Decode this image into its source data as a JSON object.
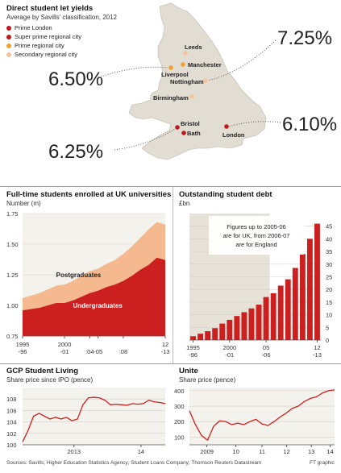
{
  "map": {
    "title": "Direct student let yields",
    "subtitle": "Average by Savills' classification, 2012",
    "legend": [
      {
        "label": "Prime London",
        "color": "#c0161c"
      },
      {
        "label": "Super prime regional city",
        "color": "#c0161c"
      },
      {
        "label": "Prime regional city",
        "color": "#f0a030"
      },
      {
        "label": "Secondary regional city",
        "color": "#f5c39b"
      }
    ],
    "cities": [
      {
        "name": "Leeds",
        "tier": "Secondary regional city"
      },
      {
        "name": "Manchester",
        "tier": "Prime regional city"
      },
      {
        "name": "Liverpool",
        "tier": "Prime regional city"
      },
      {
        "name": "Nottingham",
        "tier": "Secondary regional city"
      },
      {
        "name": "Birmingham",
        "tier": "Secondary regional city"
      },
      {
        "name": "Bristol",
        "tier": "Super prime regional city"
      },
      {
        "name": "Bath",
        "tier": "Super prime regional city"
      },
      {
        "name": "London",
        "tier": "Prime London"
      }
    ],
    "yields": [
      "6.50%",
      "7.25%",
      "6.10%",
      "6.25%"
    ]
  },
  "chart_data": [
    {
      "type": "area",
      "title": "Full-time students enrolled at UK universities",
      "subtitle": "Number (m)",
      "x": [
        "1995-96",
        "1996-97",
        "1997-98",
        "1998-99",
        "1999-00",
        "2000-01",
        "2001-02",
        "2002-03",
        "2003-04",
        "2004-05",
        "2005-06",
        "2006-07",
        "2007-08",
        "2008-09",
        "2009-10",
        "2010-11",
        "2011-12",
        "2012-13"
      ],
      "x_tick_labels": [
        [
          "1995",
          "-96"
        ],
        [
          "2000",
          "-01"
        ],
        [
          "",
          ":04"
        ],
        [
          "",
          "-05"
        ],
        [
          "",
          ":08"
        ],
        [
          "12",
          "-13"
        ]
      ],
      "ylim": [
        0.75,
        1.75
      ],
      "y_ticks": [
        "1.75",
        "1.50",
        "1.25",
        "1.00",
        "0.75"
      ],
      "series": [
        {
          "name": "Undergraduates",
          "values": [
            0.96,
            0.97,
            0.98,
            1.0,
            1.02,
            1.02,
            1.04,
            1.07,
            1.1,
            1.12,
            1.15,
            1.17,
            1.2,
            1.24,
            1.29,
            1.33,
            1.39,
            1.37
          ]
        },
        {
          "name": "Postgraduates",
          "values": [
            1.06,
            1.08,
            1.1,
            1.13,
            1.16,
            1.17,
            1.2,
            1.24,
            1.28,
            1.3,
            1.34,
            1.37,
            1.42,
            1.48,
            1.55,
            1.62,
            1.68,
            1.66
          ]
        }
      ],
      "colors": {
        "Undergraduates": "#cc1f1f",
        "Postgraduates": "#f5b98f"
      }
    },
    {
      "type": "bar",
      "title": "Outstanding student debt",
      "subtitle": "£bn",
      "categories": [
        "1995-96",
        "1996-97",
        "1997-98",
        "1998-99",
        "1999-00",
        "2000-01",
        "2001-02",
        "2002-03",
        "2003-04",
        "2004-05",
        "2005-06",
        "2006-07",
        "2007-08",
        "2008-09",
        "2009-10",
        "2010-11",
        "2011-12",
        "2012-13"
      ],
      "values": [
        1.5,
        2.5,
        3.5,
        4.7,
        6.5,
        8,
        9.5,
        11,
        12.5,
        14,
        17,
        18.5,
        21.5,
        24,
        28.5,
        34,
        40,
        46
      ],
      "ylim": [
        0,
        50
      ],
      "y_ticks": [
        "0",
        "5",
        "10",
        "15",
        "20",
        "25",
        "30",
        "35",
        "40",
        "45"
      ],
      "x_tick_labels": [
        [
          "1995",
          "-96"
        ],
        [
          "2000",
          "-01"
        ],
        [
          "05",
          "-06"
        ],
        [
          "12",
          "-13"
        ]
      ],
      "shaded_range": [
        "1995-96",
        "2005-06"
      ],
      "annotation": [
        "Figures up to 2005-06",
        "are for UK, from 2006-07",
        "are for England"
      ],
      "color": "#cc1f1f"
    },
    {
      "type": "line",
      "title": "GCP Student Living",
      "subtitle": "Share price since IPO (pence)",
      "ylim": [
        100,
        110
      ],
      "y_ticks": [
        "100",
        "102",
        "104",
        "106",
        "108"
      ],
      "x_tick_labels": [
        "2013",
        "14"
      ],
      "x": [
        "2012-05",
        "2012-05",
        "2012-06",
        "2012-06",
        "2012-07",
        "2012-08",
        "2012-09",
        "2012-10",
        "2012-11",
        "2012-12",
        "2013-01",
        "2013-02",
        "2013-03",
        "2013-04",
        "2013-05",
        "2013-06",
        "2013-07",
        "2013-08",
        "2013-09",
        "2013-10",
        "2013-11",
        "2013-12",
        "2014-01",
        "2014-02",
        "2014-03",
        "2014-04",
        "2014-05"
      ],
      "values": [
        100.5,
        102.5,
        105,
        105.5,
        105,
        104.5,
        104.8,
        104.5,
        104.8,
        104.2,
        104.5,
        107,
        108.2,
        108.3,
        108.2,
        107.8,
        107,
        107.1,
        107,
        106.9,
        107.2,
        107.1,
        107.2,
        107.8,
        107.5,
        107.4,
        107.2
      ],
      "color": "#cc1f1f"
    },
    {
      "type": "line",
      "title": "Unite",
      "subtitle": "Share price (pence)",
      "ylim": [
        50,
        420
      ],
      "y_ticks": [
        "100",
        "200",
        "300",
        "400"
      ],
      "x_tick_labels": [
        "2009",
        "10",
        "11",
        "12",
        "13",
        "14"
      ],
      "x": [
        "2008-07",
        "2008-10",
        "2009-01",
        "2009-04",
        "2009-07",
        "2009-10",
        "2010-01",
        "2010-04",
        "2010-07",
        "2010-10",
        "2011-01",
        "2011-04",
        "2011-07",
        "2011-10",
        "2012-01",
        "2012-04",
        "2012-07",
        "2012-10",
        "2013-01",
        "2013-04",
        "2013-07",
        "2013-10",
        "2014-01",
        "2014-04",
        "2014-06"
      ],
      "values": [
        270,
        180,
        110,
        80,
        170,
        205,
        200,
        180,
        190,
        180,
        200,
        215,
        185,
        175,
        200,
        230,
        255,
        285,
        300,
        330,
        350,
        360,
        385,
        400,
        405
      ],
      "color": "#cc1f1f"
    }
  ],
  "footer": {
    "sources": "Sources: Savills; Higher Education Statistics Agency; Student Loans Company; Thomson Reuters Datastream",
    "credit": "FT graphic"
  }
}
